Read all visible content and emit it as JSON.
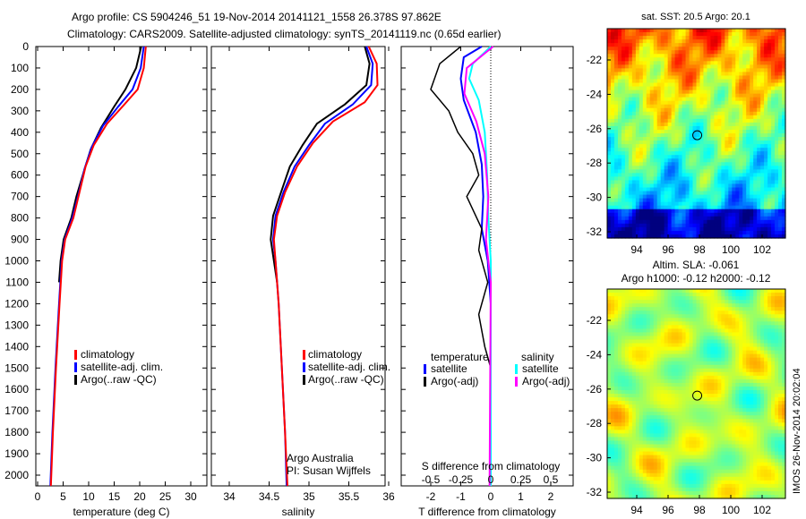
{
  "title_line1": "Argo profile: CS 5904246_51 19-Nov-2014 20141121_1558 26.378S 97.862E",
  "title_line2": "Climatology: CARS2009. Satellite-adjusted climatology: synTS_20141119.nc (0.65d earlier)",
  "colors": {
    "climatology": "#ff0000",
    "satellite": "#0000ff",
    "argo": "#000000",
    "sal_sat": "#00ffff",
    "sal_argo": "#ff00ff"
  },
  "chart_data": [
    {
      "type": "line",
      "name": "temperature",
      "xlabel": "temperature (deg C)",
      "xlim": [
        -0.3,
        33
      ],
      "ylim": [
        2050,
        0
      ],
      "xticks": [
        0,
        5,
        10,
        15,
        20,
        25,
        30
      ],
      "yticks": [
        0,
        100,
        200,
        300,
        400,
        500,
        600,
        700,
        800,
        900,
        1000,
        1100,
        1200,
        1300,
        1400,
        1500,
        1600,
        1700,
        1800,
        1900,
        2000
      ],
      "legend": [
        "climatology",
        "satellite-adj. clim.",
        "Argo(..raw -QC)"
      ],
      "series": [
        {
          "name": "climatology",
          "color": "#ff0000",
          "points": [
            [
              21.2,
              0
            ],
            [
              20.8,
              100
            ],
            [
              19.6,
              200
            ],
            [
              17,
              270
            ],
            [
              13.6,
              360
            ],
            [
              11,
              460
            ],
            [
              9.4,
              560
            ],
            [
              8.2,
              680
            ],
            [
              7,
              800
            ],
            [
              5.4,
              900
            ],
            [
              4.8,
              1000
            ],
            [
              4.3,
              1200
            ],
            [
              3.6,
              1500
            ],
            [
              3,
              1800
            ],
            [
              2.6,
              2050
            ]
          ]
        },
        {
          "name": "satellite-adj. clim.",
          "color": "#0000ff",
          "points": [
            [
              20.8,
              0
            ],
            [
              20.2,
              100
            ],
            [
              18.6,
              200
            ],
            [
              15.8,
              280
            ],
            [
              12.8,
              370
            ],
            [
              10.6,
              470
            ],
            [
              9.2,
              570
            ],
            [
              8,
              690
            ],
            [
              6.8,
              800
            ],
            [
              5.3,
              900
            ],
            [
              4.7,
              1000
            ],
            [
              4.2,
              1200
            ],
            [
              3.5,
              1500
            ],
            [
              2.9,
              1800
            ],
            [
              2.5,
              2050
            ]
          ]
        },
        {
          "name": "Argo(..raw -QC)",
          "color": "#000000",
          "points": [
            [
              20.3,
              0
            ],
            [
              19.3,
              100
            ],
            [
              17.2,
              200
            ],
            [
              15,
              280
            ],
            [
              12.4,
              380
            ],
            [
              10.4,
              480
            ],
            [
              9.1,
              580
            ],
            [
              7.6,
              700
            ],
            [
              6.6,
              800
            ],
            [
              5.1,
              900
            ],
            [
              4.5,
              1000
            ],
            [
              4.2,
              1100
            ]
          ]
        }
      ]
    },
    {
      "type": "line",
      "name": "salinity",
      "xlabel": "salinity",
      "xlim": [
        33.78,
        35.95
      ],
      "ylim": [
        2050,
        0
      ],
      "xticks": [
        34,
        34.5,
        35,
        35.5,
        36
      ],
      "legend": [
        "climatology",
        "satellite-adj. clim.",
        "Argo(..raw -QC)"
      ],
      "annotation": [
        "Argo Australia",
        "PI: Susan Wijffels"
      ],
      "series": [
        {
          "name": "climatology",
          "color": "#ff0000",
          "points": [
            [
              35.75,
              0
            ],
            [
              35.85,
              80
            ],
            [
              35.86,
              180
            ],
            [
              35.7,
              260
            ],
            [
              35.3,
              350
            ],
            [
              35.05,
              450
            ],
            [
              34.85,
              560
            ],
            [
              34.7,
              680
            ],
            [
              34.6,
              790
            ],
            [
              34.56,
              900
            ],
            [
              34.58,
              1000
            ],
            [
              34.62,
              1200
            ],
            [
              34.66,
              1500
            ],
            [
              34.7,
              1800
            ],
            [
              34.73,
              2050
            ]
          ]
        },
        {
          "name": "satellite-adj. clim.",
          "color": "#0000ff",
          "points": [
            [
              35.72,
              0
            ],
            [
              35.8,
              80
            ],
            [
              35.78,
              180
            ],
            [
              35.55,
              270
            ],
            [
              35.2,
              360
            ],
            [
              35.0,
              460
            ],
            [
              34.82,
              560
            ],
            [
              34.68,
              680
            ],
            [
              34.58,
              790
            ],
            [
              34.55,
              900
            ],
            [
              34.58,
              1000
            ],
            [
              34.62,
              1200
            ],
            [
              34.66,
              1500
            ],
            [
              34.7,
              1800
            ],
            [
              34.72,
              2050
            ]
          ]
        },
        {
          "name": "Argo(..raw -QC)",
          "color": "#000000",
          "points": [
            [
              35.7,
              0
            ],
            [
              35.76,
              80
            ],
            [
              35.72,
              180
            ],
            [
              35.45,
              270
            ],
            [
              35.1,
              360
            ],
            [
              34.92,
              460
            ],
            [
              34.76,
              560
            ],
            [
              34.65,
              680
            ],
            [
              34.55,
              790
            ],
            [
              34.52,
              900
            ],
            [
              34.56,
              1000
            ],
            [
              34.6,
              1100
            ]
          ]
        }
      ]
    },
    {
      "type": "line",
      "name": "difference",
      "xlabel": "T difference from climatology",
      "x2label": "S difference from climatology",
      "xlim": [
        -3,
        3
      ],
      "x2lim": [
        -0.75,
        0.75
      ],
      "ylim": [
        2050,
        0
      ],
      "xticks": [
        -2,
        -1,
        0,
        1,
        2
      ],
      "x2ticks": [
        -0.5,
        -0.25,
        0,
        0.25,
        0.5
      ],
      "legend": {
        "temperature": [
          "satellite",
          "Argo(-adj)"
        ],
        "salinity": [
          "satellite",
          "Argo(-adj)"
        ],
        "temperature_title": "temperature",
        "salinity_title": "salinity"
      },
      "series": [
        {
          "name": "T satellite",
          "color": "#0000ff",
          "unit": "T",
          "points": [
            [
              -0.3,
              0
            ],
            [
              -0.9,
              50
            ],
            [
              -1.0,
              150
            ],
            [
              -0.9,
              250
            ],
            [
              -0.5,
              400
            ],
            [
              -0.3,
              550
            ],
            [
              -0.25,
              700
            ],
            [
              -0.3,
              850
            ],
            [
              -0.1,
              1000
            ],
            [
              0,
              1200
            ],
            [
              0,
              2050
            ]
          ]
        },
        {
          "name": "T Argo(-adj)",
          "color": "#000000",
          "unit": "T",
          "points": [
            [
              -1.0,
              0
            ],
            [
              -1.7,
              80
            ],
            [
              -2.0,
              200
            ],
            [
              -1.4,
              300
            ],
            [
              -1.1,
              400
            ],
            [
              -0.6,
              500
            ],
            [
              -0.4,
              600
            ],
            [
              -0.8,
              700
            ],
            [
              -0.3,
              850
            ],
            [
              -0.4,
              950
            ],
            [
              -0.1,
              1100
            ],
            [
              -0.4,
              1250
            ],
            [
              -0.2,
              1400
            ],
            [
              0,
              1500
            ]
          ]
        },
        {
          "name": "S satellite",
          "color": "#00ffff",
          "unit": "S",
          "points": [
            [
              0,
              0
            ],
            [
              -0.15,
              80
            ],
            [
              -0.18,
              150
            ],
            [
              -0.1,
              250
            ],
            [
              -0.05,
              400
            ],
            [
              -0.03,
              600
            ],
            [
              -0.02,
              800
            ],
            [
              0,
              1000
            ],
            [
              0,
              2050
            ]
          ]
        },
        {
          "name": "S Argo(-adj)",
          "color": "#ff00ff",
          "unit": "S",
          "points": [
            [
              0.02,
              0
            ],
            [
              -0.2,
              100
            ],
            [
              -0.22,
              220
            ],
            [
              -0.12,
              350
            ],
            [
              -0.05,
              500
            ],
            [
              -0.02,
              700
            ],
            [
              -0.04,
              900
            ],
            [
              0,
              1100
            ],
            [
              -0.01,
              2050
            ]
          ]
        }
      ]
    },
    {
      "type": "heatmap",
      "name": "sst-map",
      "title": "sat. SST: 20.5  Argo: 20.1",
      "xticks": [
        94,
        96,
        98,
        100,
        102
      ],
      "yticks": [
        -22,
        -24,
        -26,
        -28,
        -30,
        -32
      ],
      "xlim": [
        92.1,
        103.6
      ],
      "ylim": [
        -32.4,
        -20.2
      ],
      "marker": [
        97.86,
        -26.38
      ]
    },
    {
      "type": "heatmap",
      "name": "sla-map",
      "title": "Altim. SLA: -0.061",
      "subtitle": "Argo h1000: -0.12 h2000: -0.12",
      "xticks": [
        94,
        96,
        98,
        100,
        102
      ],
      "yticks": [
        -22,
        -24,
        -26,
        -28,
        -30,
        -32
      ],
      "xlim": [
        92.1,
        103.6
      ],
      "ylim": [
        -32.4,
        -20.2
      ],
      "marker": [
        97.86,
        -26.38
      ]
    }
  ],
  "credit": "IMOS 26-Nov-2014 20:02:04"
}
